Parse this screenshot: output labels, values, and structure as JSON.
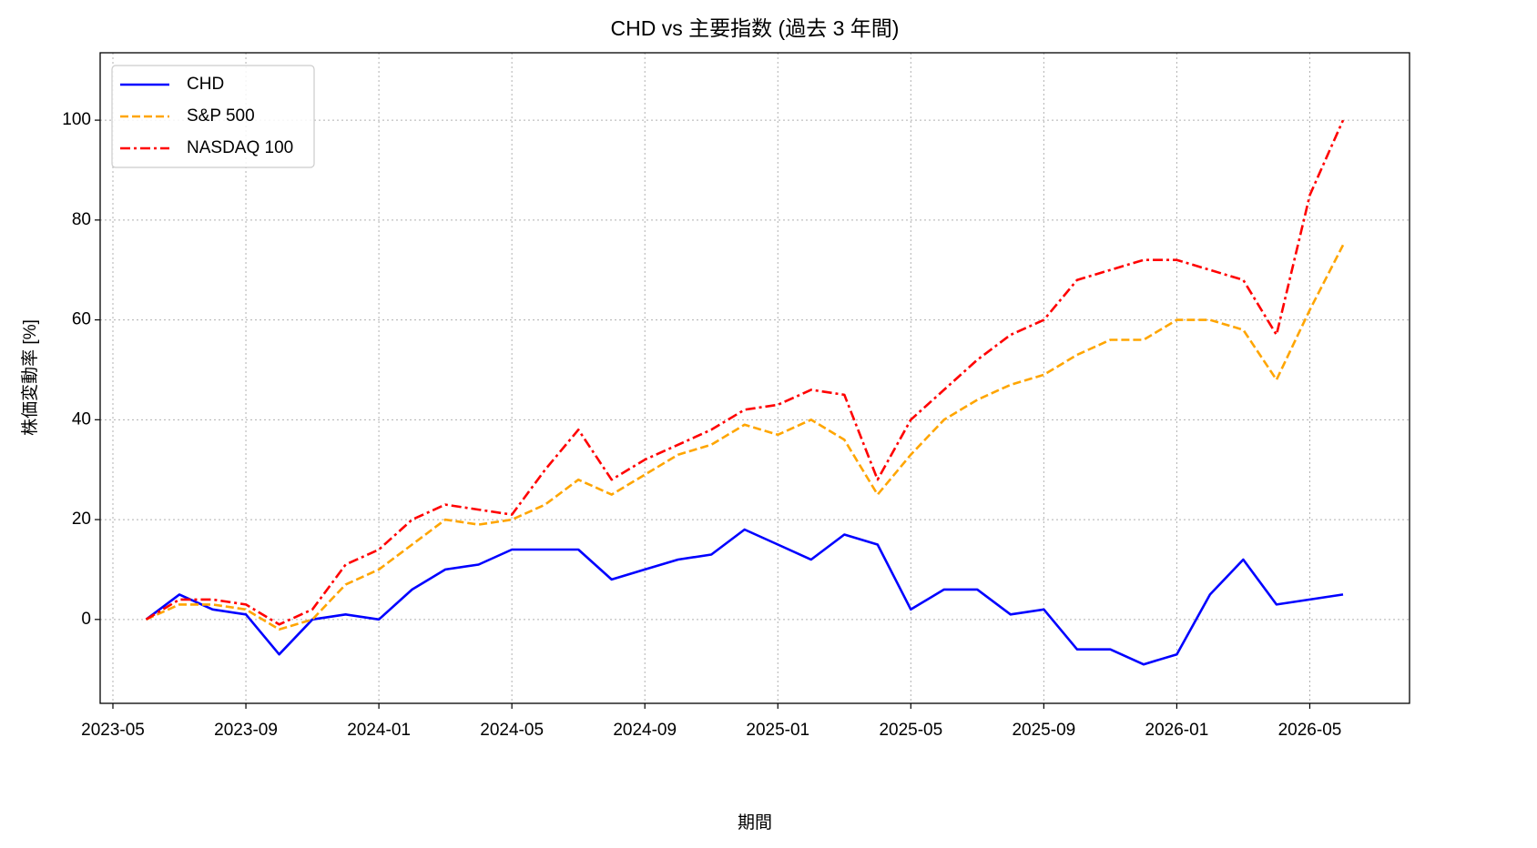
{
  "chart_data": {
    "type": "line",
    "title": "CHD vs 主要指数 (過去 3 年間)",
    "x_label": "期間",
    "y_label": "株価変動率 [%]",
    "x": [
      "2023-06",
      "2023-07",
      "2023-08",
      "2023-09",
      "2023-10",
      "2023-11",
      "2023-12",
      "2024-01",
      "2024-02",
      "2024-03",
      "2024-04",
      "2024-05",
      "2024-06",
      "2024-07",
      "2024-08",
      "2024-09",
      "2024-10",
      "2024-11",
      "2024-12",
      "2025-01",
      "2025-02",
      "2025-03",
      "2025-04",
      "2025-05",
      "2025-06",
      "2025-07",
      "2025-08",
      "2025-09",
      "2025-10",
      "2025-11",
      "2025-12",
      "2026-01",
      "2026-02",
      "2026-03",
      "2026-04",
      "2026-05",
      "2026-06"
    ],
    "series": [
      {
        "name": "CHD",
        "color": "#0000ff",
        "linestyle": "solid",
        "values": [
          0,
          5,
          2,
          1,
          -7,
          0,
          1,
          0,
          6,
          10,
          11,
          14,
          14,
          14,
          8,
          10,
          12,
          13,
          18,
          15,
          12,
          17,
          15,
          2,
          6,
          6,
          1,
          2,
          -6,
          -6,
          -9,
          -7,
          5,
          12,
          3,
          4,
          5
        ]
      },
      {
        "name": "S&P 500",
        "color": "#ffa500",
        "linestyle": "dashed",
        "values": [
          0,
          3,
          3,
          2,
          -2,
          0,
          7,
          10,
          15,
          20,
          19,
          20,
          23,
          28,
          25,
          29,
          33,
          35,
          39,
          37,
          40,
          36,
          25,
          33,
          40,
          44,
          47,
          49,
          53,
          56,
          56,
          60,
          60,
          58,
          48,
          62,
          75
        ]
      },
      {
        "name": "NASDAQ 100",
        "color": "#ff0000",
        "linestyle": "dashdot",
        "values": [
          0,
          4,
          4,
          3,
          -1,
          2,
          11,
          14,
          20,
          23,
          22,
          21,
          30,
          38,
          28,
          32,
          35,
          38,
          42,
          43,
          46,
          45,
          28,
          40,
          46,
          52,
          57,
          60,
          68,
          70,
          72,
          72,
          70,
          68,
          57,
          85,
          100
        ]
      }
    ],
    "xlim": [
      "2023-05",
      "2026-08"
    ],
    "xticks": [
      "2023-05",
      "2023-09",
      "2024-01",
      "2024-05",
      "2024-09",
      "2025-01",
      "2025-05",
      "2025-09",
      "2026-01",
      "2026-05"
    ],
    "ylim": [
      -16.8,
      113.5
    ],
    "yticks": [
      0,
      20,
      40,
      60,
      80,
      100
    ],
    "grid": true,
    "legend": "upper-left"
  }
}
